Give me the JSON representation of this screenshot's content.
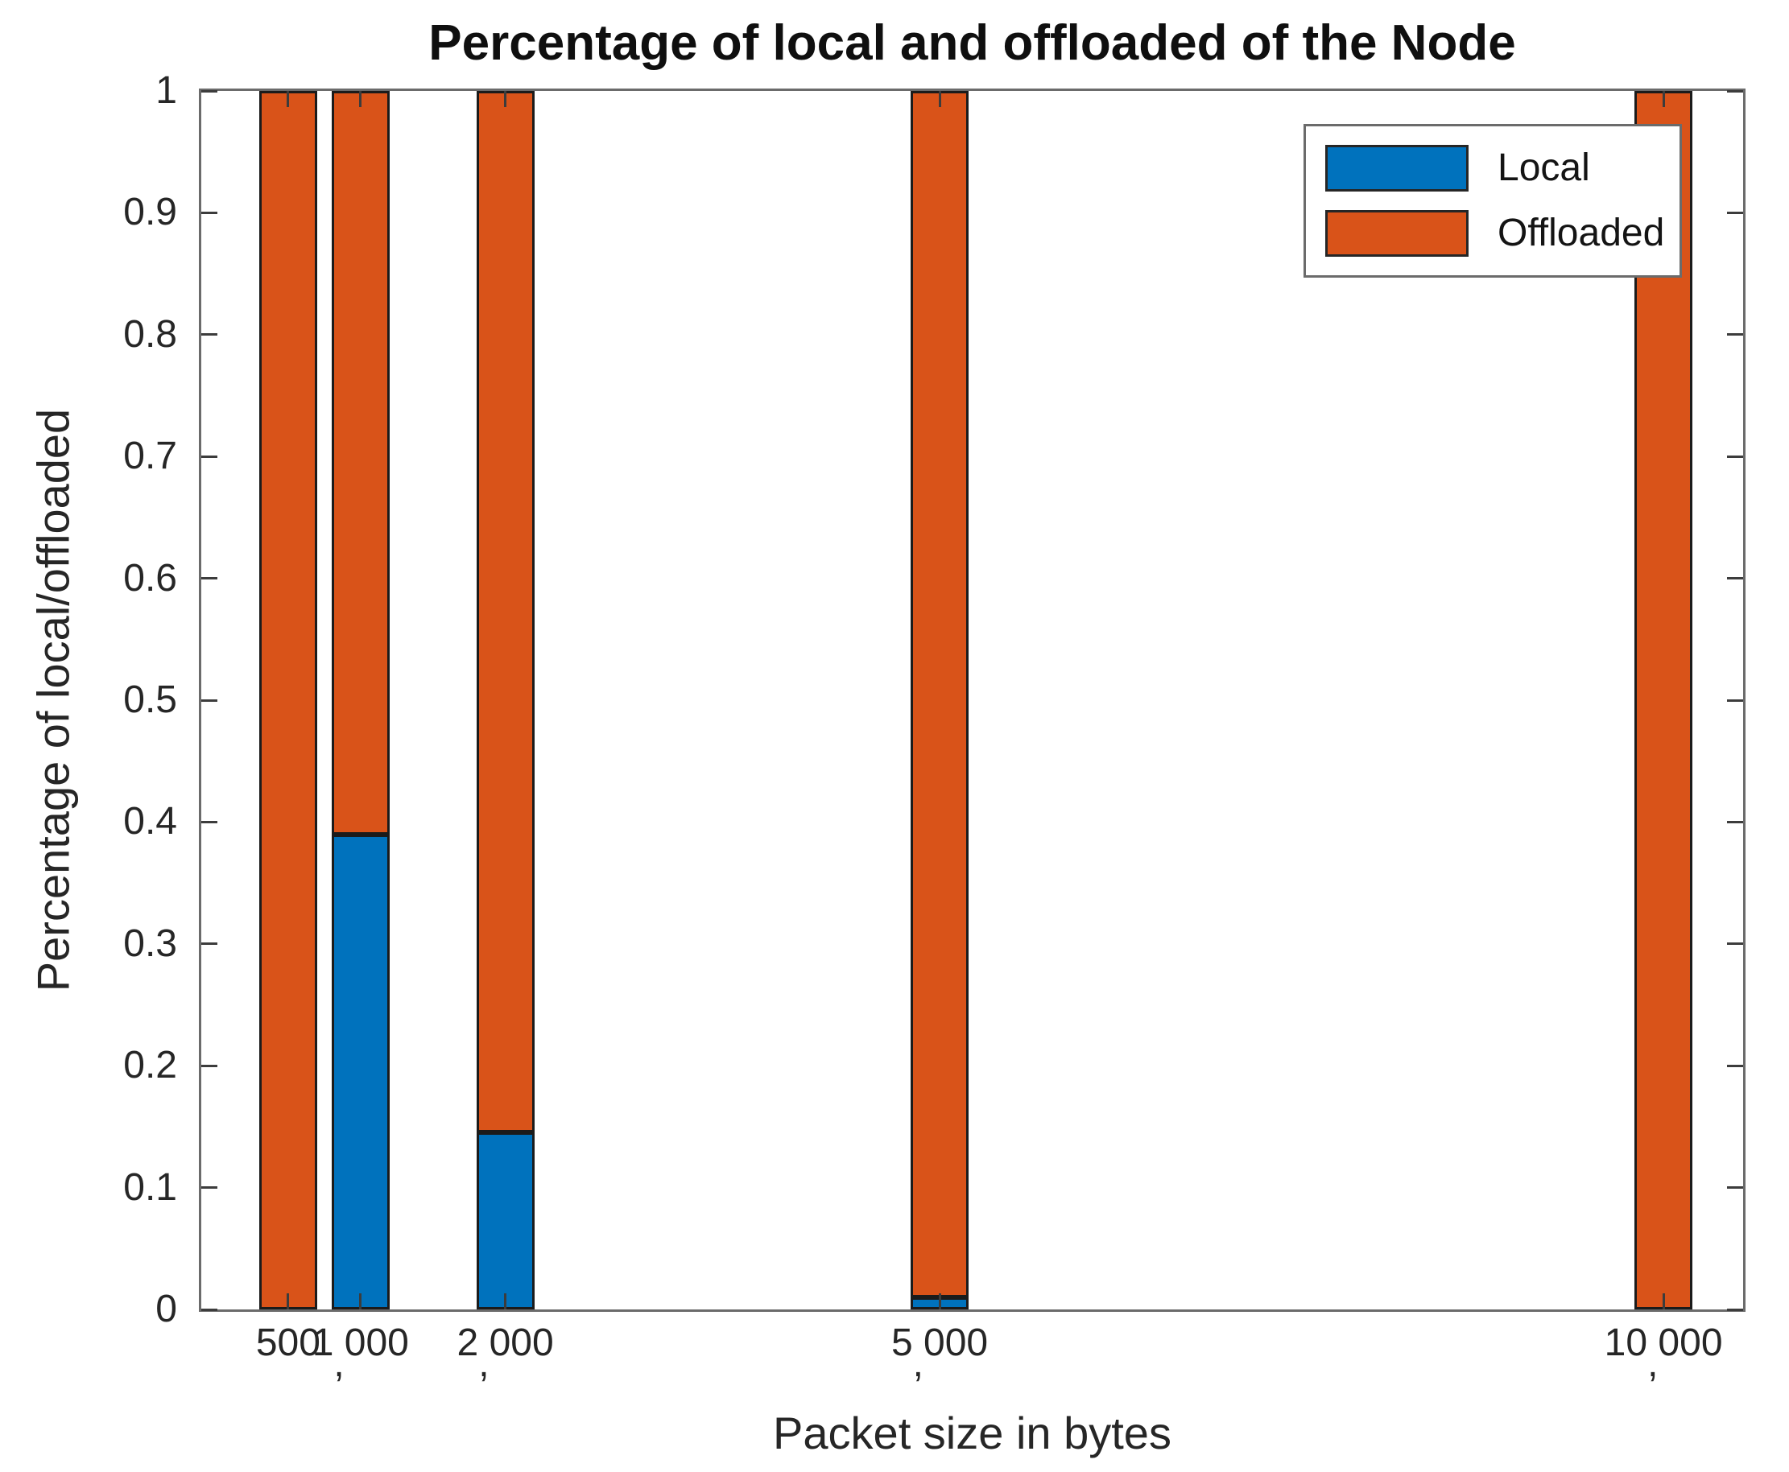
{
  "chart_data": {
    "type": "bar",
    "stacked": true,
    "title": "Percentage of local and offloaded of the Node",
    "xlabel": "Packet size in bytes",
    "ylabel": "Percentage of local/offloaded",
    "categories": [
      500,
      1000,
      2000,
      5000,
      10000
    ],
    "category_tick_labels": [
      "500",
      "1,000",
      "2,000",
      "5,000",
      "10,000"
    ],
    "series": [
      {
        "name": "Local",
        "color": "#0072BD",
        "values": [
          0,
          0.39,
          0.145,
          0.01,
          0
        ]
      },
      {
        "name": "Offloaded",
        "color": "#D95319",
        "values": [
          1,
          0.61,
          0.855,
          0.99,
          1
        ]
      }
    ],
    "xlim": [
      -100,
      10550
    ],
    "ylim": [
      0,
      1
    ],
    "yticks": [
      0,
      0.1,
      0.2,
      0.3,
      0.4,
      0.5,
      0.6,
      0.7,
      0.8,
      0.9,
      1
    ],
    "ytick_labels": [
      "0",
      "0.1",
      "0.2",
      "0.3",
      "0.4",
      "0.5",
      "0.6",
      "0.7",
      "0.8",
      "0.9",
      "1"
    ],
    "bar_width_units": 400,
    "grid": false,
    "legend": {
      "position": "top-right",
      "items": [
        {
          "label": "Local",
          "color": "#0072BD"
        },
        {
          "label": "Offloaded",
          "color": "#D95319"
        }
      ]
    },
    "colors": {
      "bar_edge": "#1b1b1b",
      "axis": "#6b6b6b",
      "tick_mark": "#3c3c3c",
      "text": "#262626"
    }
  }
}
